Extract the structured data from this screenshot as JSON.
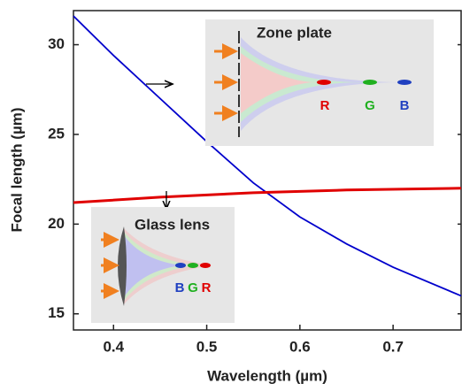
{
  "chart_data": {
    "type": "line",
    "x_label": "Wavelength (µm)",
    "y_label": "Focal length (µm)",
    "xlim": [
      0.357,
      0.773
    ],
    "ylim": [
      14.1,
      31.9
    ],
    "xticks": [
      0.4,
      0.5,
      0.6,
      0.7
    ],
    "yticks": [
      15,
      20,
      25,
      30
    ],
    "series": [
      {
        "color": "#0000cc",
        "x": [
          0.357,
          0.4,
          0.45,
          0.5,
          0.55,
          0.6,
          0.65,
          0.7,
          0.773
        ],
        "values": [
          31.6,
          29.4,
          27.0,
          24.6,
          22.3,
          20.4,
          18.9,
          17.6,
          16.0
        ]
      },
      {
        "color": "#e00000",
        "x": [
          0.357,
          0.45,
          0.55,
          0.65,
          0.773
        ],
        "values": [
          21.2,
          21.5,
          21.75,
          21.9,
          22.0
        ]
      }
    ],
    "annotations": {
      "zone_plate": "Zone plate",
      "zone_r": "R",
      "zone_g": "G",
      "zone_b": "B",
      "glass_lens": "Glass lens",
      "glass_b": "B",
      "glass_g": "G",
      "glass_r": "R"
    }
  }
}
